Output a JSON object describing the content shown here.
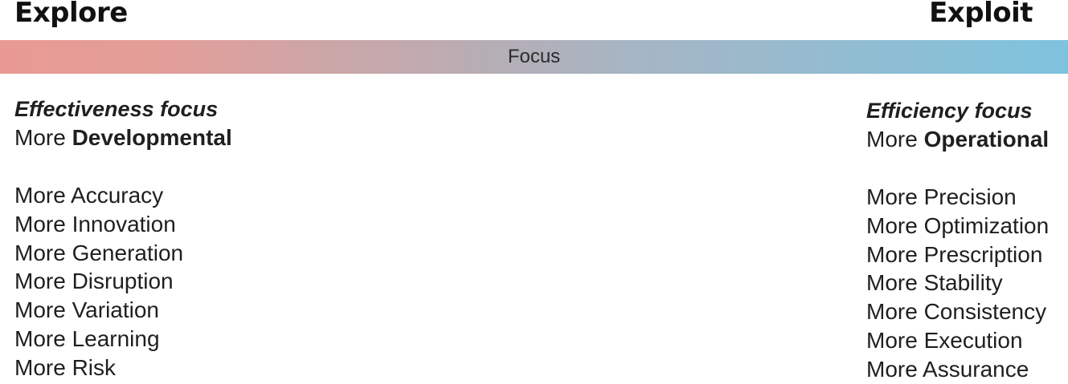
{
  "headings": {
    "left": "Explore",
    "right": "Exploit"
  },
  "focus_bar": {
    "label": "Focus",
    "gradient_colors": [
      "#e89a92",
      "#b7adb4",
      "#7ec3de"
    ]
  },
  "left_column": {
    "title": "Effectiveness focus",
    "subtitle_prefix": "More",
    "subtitle_bold": "Developmental",
    "items": [
      "More Accuracy",
      "More Innovation",
      "More Generation",
      "More Disruption",
      "More Variation",
      "More Learning",
      "More Risk"
    ]
  },
  "right_column": {
    "title": "Efficiency focus",
    "subtitle_prefix": "More",
    "subtitle_bold": "Operational",
    "items": [
      "More Precision",
      "More Optimization",
      "More Prescription",
      "More Stability",
      "More Consistency",
      "More Execution",
      "More Assurance"
    ]
  }
}
